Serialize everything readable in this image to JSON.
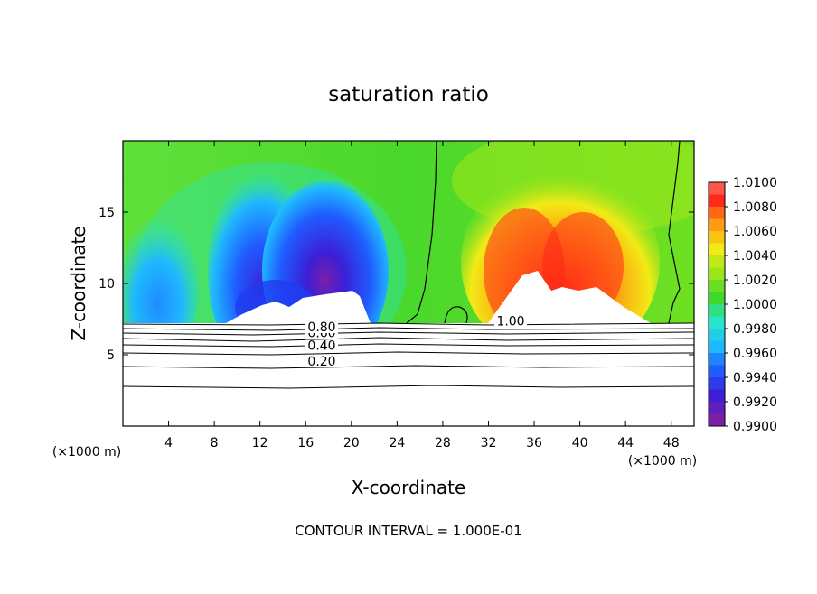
{
  "chart_data": {
    "type": "heatmap",
    "title": "saturation ratio",
    "xlabel": "X-coordinate",
    "ylabel": "Z-coordinate",
    "x_unit_label": "(×1000 m)",
    "x_range": [
      0,
      50
    ],
    "y_range": [
      0,
      20
    ],
    "x_ticks": [
      4,
      8,
      12,
      16,
      20,
      24,
      28,
      32,
      36,
      40,
      44,
      48
    ],
    "y_ticks": [
      5,
      10,
      15
    ],
    "colorbar": {
      "levels": [
        "0.9900",
        "0.9920",
        "0.9940",
        "0.9960",
        "0.9980",
        "1.0000",
        "1.0020",
        "1.0040",
        "1.0060",
        "1.0080",
        "1.0100"
      ],
      "colors": [
        "#7a1fa8",
        "#3c1fd6",
        "#1f5cff",
        "#1fb8ff",
        "#25e6c8",
        "#3fd82c",
        "#9be61a",
        "#f2ea16",
        "#ff9a12",
        "#ff2a18",
        "#ff8c8c"
      ]
    },
    "contour_lines": [
      {
        "label": "0.20",
        "z": 4.5
      },
      {
        "label": "0.40",
        "z": 5.6
      },
      {
        "label": "0.60",
        "z": 6.5
      },
      {
        "label": "0.80",
        "z": 6.9
      },
      {
        "label": "1.00",
        "z": 7.3
      }
    ],
    "contour_interval_note": "CONTOUR INTERVAL = 1.000E-01"
  }
}
